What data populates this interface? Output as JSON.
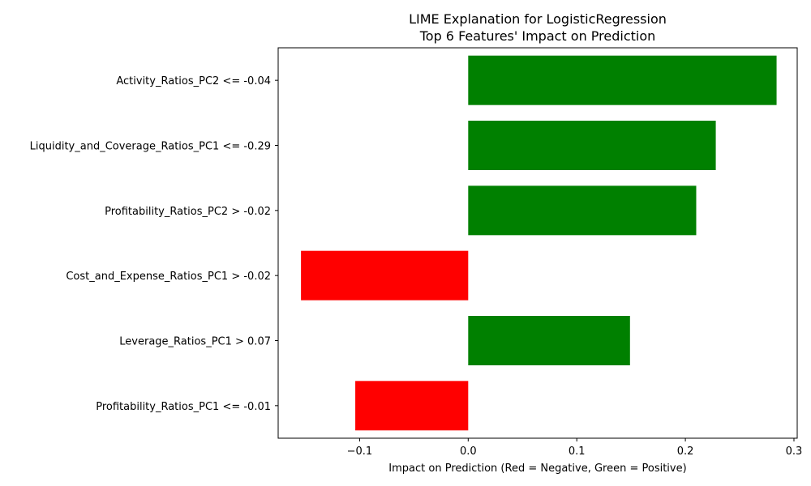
{
  "chart_data": {
    "type": "bar",
    "orientation": "horizontal",
    "title": "LIME Explanation for LogisticRegression",
    "subtitle": "Top 6 Features' Impact on Prediction",
    "xlabel": "Impact on Prediction (Red = Negative, Green = Positive)",
    "ylabel": "",
    "categories": [
      "Activity_Ratios_PC2 <= -0.04",
      "Liquidity_and_Coverage_Ratios_PC1 <= -0.29",
      "Profitability_Ratios_PC2 > -0.02",
      "Cost_and_Expense_Ratios_PC1 > -0.02",
      "Leverage_Ratios_PC1 > 0.07",
      "Profitability_Ratios_PC1 <= -0.01"
    ],
    "values": [
      0.284,
      0.228,
      0.21,
      -0.154,
      0.149,
      -0.104
    ],
    "xlim": [
      -0.175,
      0.303
    ],
    "xticks": [
      -0.1,
      0.0,
      0.1,
      0.2,
      0.3
    ],
    "xtick_labels": [
      "−0.1",
      "0.0",
      "0.1",
      "0.2",
      "0.3"
    ],
    "grid": false,
    "legend": "none",
    "colors": {
      "positive": "#008000",
      "negative": "#ff0000",
      "axes": "#000000"
    }
  }
}
